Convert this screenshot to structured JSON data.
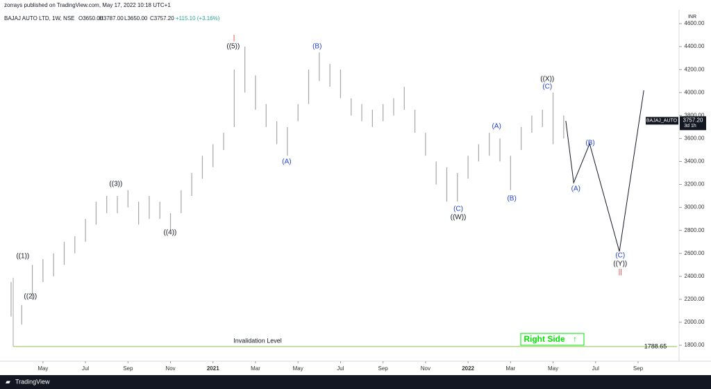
{
  "header": {
    "published": "zorrays published on TradingView.com, May 17, 2022 10:18 UTC+1",
    "symbol": "BAJAJ AUTO LTD, 1W, NSE",
    "open": "O3650.00",
    "high": "H3787.00",
    "low": "L3650.00",
    "close": "C3757.20",
    "change": "+115.10 (+3.16%)",
    "currency": "INR"
  },
  "footer": {
    "brand": "TradingView"
  },
  "chart_data": {
    "type": "ohlc",
    "title": "BAJAJ AUTO LTD, 1W, NSE",
    "bar_color": "#a6a6a6",
    "x": [
      2.5,
      3,
      3.5,
      4,
      4.5,
      5,
      5.5,
      6,
      6.5,
      7,
      7.5,
      8,
      8.5,
      9,
      9.5,
      10,
      10.5,
      11,
      11.5,
      12,
      12.5,
      13,
      13.5,
      14,
      14.5,
      15,
      15.5,
      16,
      16.5,
      17,
      17.5,
      18,
      18.5,
      19,
      19.5,
      20,
      20.5,
      21,
      21.5,
      22,
      22.5,
      23,
      23.5,
      24,
      24.5,
      25,
      25.5,
      26,
      26.5,
      27,
      27.5,
      28,
      28.5
    ],
    "high": [
      2350,
      2150,
      2500,
      2550,
      2600,
      2700,
      2750,
      2900,
      3050,
      3100,
      3100,
      3150,
      3050,
      3100,
      3050,
      2950,
      3150,
      3300,
      3450,
      3550,
      3650,
      4200,
      4400,
      4150,
      3900,
      3750,
      3700,
      3900,
      4200,
      4350,
      4250,
      4200,
      3950,
      3900,
      3850,
      3900,
      3950,
      4050,
      3850,
      3650,
      3400,
      3350,
      3300,
      3450,
      3550,
      3650,
      3600,
      3450,
      3700,
      3800,
      3850,
      4000,
      3800
    ],
    "low": [
      2050,
      1980,
      2200,
      2350,
      2400,
      2500,
      2600,
      2700,
      2850,
      2950,
      2950,
      3000,
      2850,
      2900,
      2900,
      2800,
      2950,
      3100,
      3250,
      3350,
      3500,
      3700,
      4000,
      3850,
      3700,
      3550,
      3450,
      3750,
      3900,
      4100,
      4050,
      3950,
      3800,
      3750,
      3700,
      3750,
      3800,
      3850,
      3650,
      3450,
      3200,
      3050,
      3050,
      3250,
      3400,
      3450,
      3400,
      3150,
      3500,
      3650,
      3700,
      3550,
      3600
    ],
    "projection": {
      "color": "#131722",
      "x": [
        28.6,
        28.97,
        29.72,
        31.12,
        32.27
      ],
      "values": [
        3753,
        3215,
        3554,
        2616,
        4019
      ]
    },
    "last_price": {
      "name": "BAJAJ_AUTO",
      "value": 3757.2,
      "label": "3757.20",
      "countdown": "3d 1h"
    },
    "invalidation": {
      "label": "Invalidation Level",
      "value": 1788.65,
      "start": 2.6,
      "color": "#8bc34a"
    },
    "right_side": {
      "label": "Right Side",
      "arrow": "↑",
      "color": "#00e600"
    },
    "annotations": [
      {
        "text": "|",
        "x": 12.99,
        "y": 4473,
        "color": "#e53935"
      },
      {
        "text": "((5))",
        "x": 12.95,
        "y": 4400,
        "color": "#131722"
      },
      {
        "text": "(B)",
        "x": 16.9,
        "y": 4400,
        "color": "#1e3fd0"
      },
      {
        "text": "((3))",
        "x": 7.43,
        "y": 3203,
        "color": "#131722"
      },
      {
        "text": "((4))",
        "x": 9.98,
        "y": 2780,
        "color": "#131722"
      },
      {
        "text": "((1))",
        "x": 3.05,
        "y": 2574,
        "color": "#131722"
      },
      {
        "text": "((2))",
        "x": 3.41,
        "y": 2223,
        "color": "#131722"
      },
      {
        "text": "(A)",
        "x": 15.47,
        "y": 3396,
        "color": "#1e3fd0"
      },
      {
        "text": "(C)",
        "x": 23.54,
        "y": 2985,
        "color": "#1e3fd0"
      },
      {
        "text": "((W))",
        "x": 23.54,
        "y": 2913,
        "color": "#131722"
      },
      {
        "text": "(A)",
        "x": 25.34,
        "y": 3705,
        "color": "#1e3fd0"
      },
      {
        "text": "(B)",
        "x": 26.06,
        "y": 3076,
        "color": "#1e3fd0"
      },
      {
        "text": "((X))",
        "x": 27.73,
        "y": 4116,
        "color": "#131722"
      },
      {
        "text": "(C)",
        "x": 27.73,
        "y": 4050,
        "color": "#1e3fd0"
      },
      {
        "text": "(A)",
        "x": 29.07,
        "y": 3161,
        "color": "#1e3fd0"
      },
      {
        "text": "(B)",
        "x": 29.75,
        "y": 3560,
        "color": "#1e3fd0"
      },
      {
        "text": "(C)",
        "x": 31.16,
        "y": 2580,
        "color": "#1e3fd0"
      },
      {
        "text": "((Y))",
        "x": 31.16,
        "y": 2507,
        "color": "#131722"
      },
      {
        "text": "||",
        "x": 31.16,
        "y": 2435,
        "color": "#e53935"
      }
    ],
    "xlim": [
      2.24,
      33.83
    ],
    "xticks": [
      {
        "value": 4,
        "label": "May"
      },
      {
        "value": 6,
        "label": "Jul"
      },
      {
        "value": 8,
        "label": "Sep"
      },
      {
        "value": 10,
        "label": "Nov"
      },
      {
        "value": 12,
        "label": "2021"
      },
      {
        "value": 14,
        "label": "Mar"
      },
      {
        "value": 16,
        "label": "May"
      },
      {
        "value": 18,
        "label": "Jul"
      },
      {
        "value": 20,
        "label": "Sep"
      },
      {
        "value": 22,
        "label": "Nov"
      },
      {
        "value": 24,
        "label": "2022"
      },
      {
        "value": 26,
        "label": "Mar"
      },
      {
        "value": 28,
        "label": "May"
      },
      {
        "value": 30,
        "label": "Jul"
      },
      {
        "value": 32,
        "label": "Sep"
      }
    ],
    "ylim": [
      1800,
      4600
    ],
    "yticks": [
      {
        "value": 1800,
        "label": "1800.00"
      },
      {
        "value": 2000,
        "label": "2000.00"
      },
      {
        "value": 2200,
        "label": "2200.00"
      },
      {
        "value": 2400,
        "label": "2400.00"
      },
      {
        "value": 2600,
        "label": "2600.00"
      },
      {
        "value": 2800,
        "label": "2800.00"
      },
      {
        "value": 3000,
        "label": "3000.00"
      },
      {
        "value": 3200,
        "label": "3200.00"
      },
      {
        "value": 3400,
        "label": "3400.00"
      },
      {
        "value": 3600,
        "label": "3600.00"
      },
      {
        "value": 3800,
        "label": "3800.00"
      },
      {
        "value": 4000,
        "label": "4000.00"
      },
      {
        "value": 4200,
        "label": "4200.00"
      },
      {
        "value": 4400,
        "label": "4400.00"
      },
      {
        "value": 4600,
        "label": "4600.00"
      }
    ],
    "grid": false
  }
}
